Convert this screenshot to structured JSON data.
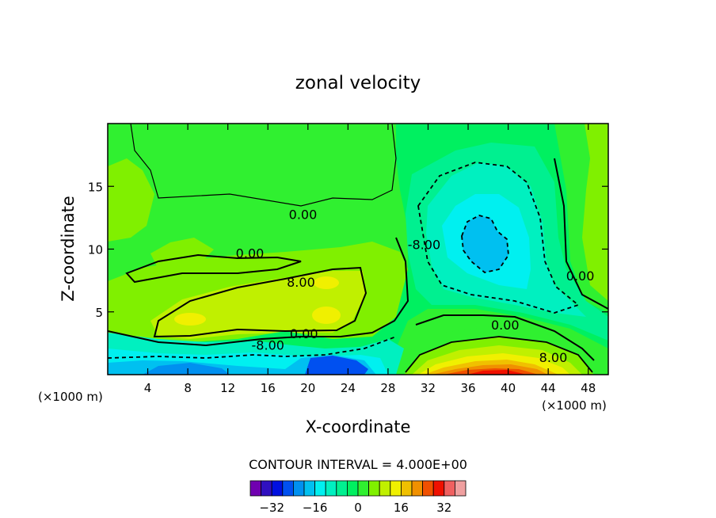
{
  "chart_data": {
    "type": "contour",
    "title": "zonal velocity",
    "xlabel": "X-coordinate",
    "ylabel": "Z-coordinate",
    "x_unit": "(×1000 m)",
    "z_unit": "(×1000 m)",
    "xlim": [
      0,
      50
    ],
    "ylim": [
      0,
      20
    ],
    "x_ticks": [
      4,
      8,
      12,
      16,
      20,
      24,
      28,
      32,
      36,
      40,
      44,
      48
    ],
    "y_ticks": [
      5,
      10,
      15
    ],
    "contour_interval_text": "CONTOUR INTERVAL = 4.000E+00",
    "contour_labels": [
      {
        "text": "0.00",
        "x": 19.5,
        "z": 12.4
      },
      {
        "text": "0.00",
        "x": 14.2,
        "z": 9.3
      },
      {
        "text": "-8.00",
        "x": 31.6,
        "z": 10.0
      },
      {
        "text": "8.00",
        "x": 19.3,
        "z": 7.0
      },
      {
        "text": "0.00",
        "x": 39.7,
        "z": 3.6
      },
      {
        "text": "0.00",
        "x": 47.2,
        "z": 7.5
      },
      {
        "text": "0.00",
        "x": 19.6,
        "z": 2.9
      },
      {
        "text": "8.00",
        "x": 44.5,
        "z": 1.0
      },
      {
        "text": "-8.00",
        "x": 16.0,
        "z": 2.0
      }
    ],
    "grid": false,
    "legend": {
      "position": "bottom",
      "labels": [
        "-32",
        "-16",
        "0",
        "16",
        "32"
      ],
      "label_values": [
        -32,
        -16,
        0,
        16,
        32
      ],
      "levels": [
        -36,
        -32,
        -28,
        -24,
        -20,
        -16,
        -12,
        -8,
        -4,
        0,
        4,
        8,
        12,
        16,
        20,
        24,
        28,
        32,
        36
      ],
      "colors": [
        "#7000b0",
        "#3010c0",
        "#0010e0",
        "#0050f0",
        "#0090f0",
        "#00c0f0",
        "#00f0f0",
        "#00f0c0",
        "#00f090",
        "#00f060",
        "#30f030",
        "#80f000",
        "#c0f000",
        "#f0f000",
        "#f0c000",
        "#f09000",
        "#f05000",
        "#f01000",
        "#f06060",
        "#f0a0a0"
      ]
    }
  }
}
